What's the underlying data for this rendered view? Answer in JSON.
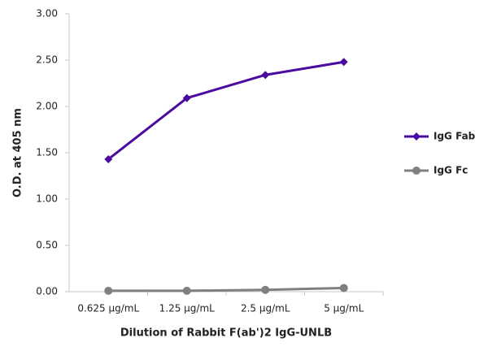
{
  "chart_data": {
    "type": "line",
    "y_label": "O.D. at 405 nm",
    "x_label": "Dilution of Rabbit F(ab')2 IgG-UNLB",
    "categories": [
      "0.625 µg/mL",
      "1.25 µg/mL",
      "2.5 µg/mL",
      "5 µg/mL"
    ],
    "series": [
      {
        "name": "IgG Fab",
        "color": "#4b0aa0",
        "marker": "diamond",
        "values": [
          1.43,
          2.09,
          2.34,
          2.48
        ]
      },
      {
        "name": "IgG Fc",
        "color": "#808080",
        "marker": "circle",
        "values": [
          0.01,
          0.01,
          0.02,
          0.04
        ]
      }
    ],
    "ylim": [
      0,
      3
    ],
    "yticks": [
      {
        "value": 0,
        "label": "0.00"
      },
      {
        "value": 0.5,
        "label": "0.50"
      },
      {
        "value": 1,
        "label": "1.00"
      },
      {
        "value": 1.5,
        "label": "1.50"
      },
      {
        "value": 2,
        "label": "2.00"
      },
      {
        "value": 2.5,
        "label": "2.50"
      },
      {
        "value": 3,
        "label": "3.00"
      }
    ],
    "grid": false,
    "legend": "right"
  }
}
